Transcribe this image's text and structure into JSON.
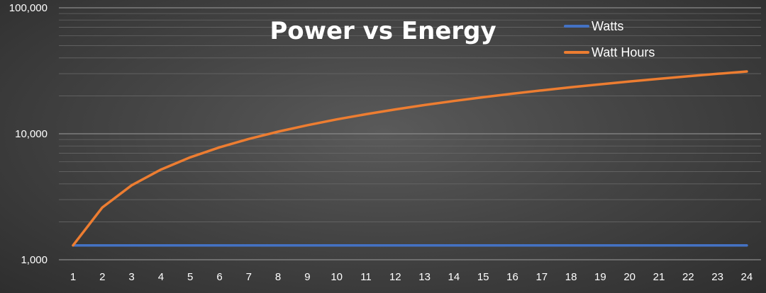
{
  "chart_data": {
    "type": "line",
    "title": "Power vs Energy",
    "xlabel": "",
    "ylabel": "",
    "y_scale": "log",
    "ylim": [
      1000,
      100000
    ],
    "y_ticks": [
      1000,
      10000,
      100000
    ],
    "y_tick_labels": [
      "1,000",
      "10,000",
      "100,000"
    ],
    "categories": [
      "1",
      "2",
      "3",
      "4",
      "5",
      "6",
      "7",
      "8",
      "9",
      "10",
      "11",
      "12",
      "13",
      "14",
      "15",
      "16",
      "17",
      "18",
      "19",
      "20",
      "21",
      "22",
      "23",
      "24"
    ],
    "series": [
      {
        "name": "Watts",
        "color": "#4472c4",
        "values": [
          1300,
          1300,
          1300,
          1300,
          1300,
          1300,
          1300,
          1300,
          1300,
          1300,
          1300,
          1300,
          1300,
          1300,
          1300,
          1300,
          1300,
          1300,
          1300,
          1300,
          1300,
          1300,
          1300,
          1300
        ]
      },
      {
        "name": "Watt Hours",
        "color": "#ed7d31",
        "values": [
          1300,
          2600,
          3900,
          5200,
          6500,
          7800,
          9100,
          10400,
          11700,
          13000,
          14300,
          15600,
          16900,
          18200,
          19500,
          20800,
          22100,
          23400,
          24700,
          26000,
          27300,
          28600,
          29900,
          31200
        ]
      }
    ],
    "legend_position": "top-right",
    "grid": true
  }
}
